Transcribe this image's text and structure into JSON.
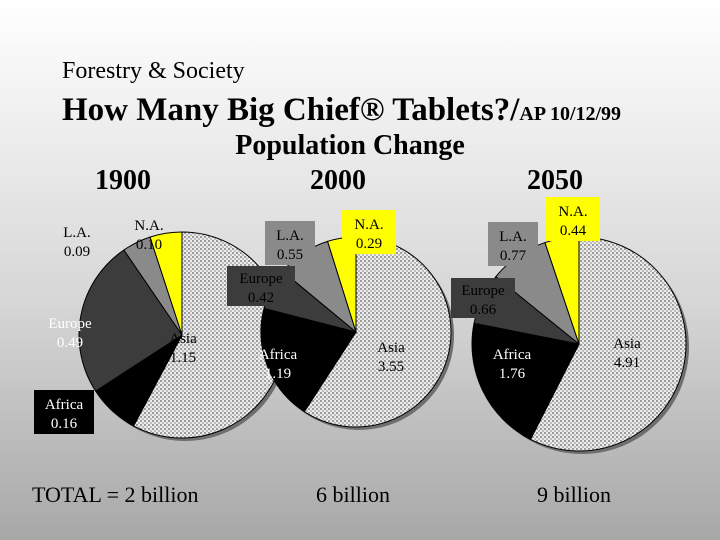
{
  "header": {
    "subtitle": "Forestry & Society",
    "title": "How Many Big Chief® Tablets?/",
    "title_suffix": "AP 10/12/99",
    "section_title": "Population Change"
  },
  "chart_data": [
    {
      "type": "pie",
      "year": "1900",
      "unit": "billion",
      "total_label": "TOTAL = 2 billion",
      "slices": [
        {
          "region": "Asia",
          "name": "Asia",
          "value_label": "1.15",
          "value": 1.15,
          "color": "#e4e4e4",
          "pattern": "dots"
        },
        {
          "region": "Africa",
          "name": "Africa",
          "value_label": "0.16",
          "value": 0.16,
          "color": "#000000"
        },
        {
          "region": "Europe",
          "name": "Europe",
          "value_label": "0.49",
          "value": 0.49,
          "color": "#3c3c3c"
        },
        {
          "region": "LA",
          "name": "L.A.",
          "value_label": "0.09",
          "value": 0.09,
          "color": "#8a8a8a"
        },
        {
          "region": "NA",
          "name": "N.A.",
          "value_label": "0.10",
          "value": 0.1,
          "color": "#ffff00"
        }
      ]
    },
    {
      "type": "pie",
      "year": "2000",
      "unit": "billion",
      "total_label": "6 billion",
      "slices": [
        {
          "region": "Asia",
          "name": "Asia",
          "value_label": "3.55",
          "value": 3.55,
          "color": "#e4e4e4",
          "pattern": "dots"
        },
        {
          "region": "Africa",
          "name": "Africa",
          "value_label": "1.19",
          "value": 1.19,
          "color": "#000000"
        },
        {
          "region": "Europe",
          "name": "Europe",
          "value_label": "0.42",
          "value": 0.42,
          "color": "#3c3c3c"
        },
        {
          "region": "LA",
          "name": "L.A.",
          "value_label": "0.55",
          "value": 0.55,
          "color": "#8a8a8a"
        },
        {
          "region": "NA",
          "name": "N.A.",
          "value_label": "0.29",
          "value": 0.29,
          "color": "#ffff00"
        }
      ]
    },
    {
      "type": "pie",
      "year": "2050",
      "unit": "billion",
      "total_label": "9 billion",
      "slices": [
        {
          "region": "Asia",
          "name": "Asia",
          "value_label": "4.91",
          "value": 4.91,
          "color": "#e4e4e4",
          "pattern": "dots"
        },
        {
          "region": "Africa",
          "name": "Africa",
          "value_label": "1.76",
          "value": 1.76,
          "color": "#000000"
        },
        {
          "region": "Europe",
          "name": "Europe",
          "value_label": "0.66",
          "value": 0.66,
          "color": "#3c3c3c"
        },
        {
          "region": "LA",
          "name": "L.A.",
          "value_label": "0.77",
          "value": 0.77,
          "color": "#8a8a8a"
        },
        {
          "region": "NA",
          "name": "N.A.",
          "value_label": "0.44",
          "value": 0.44,
          "color": "#ffff00"
        }
      ]
    }
  ]
}
